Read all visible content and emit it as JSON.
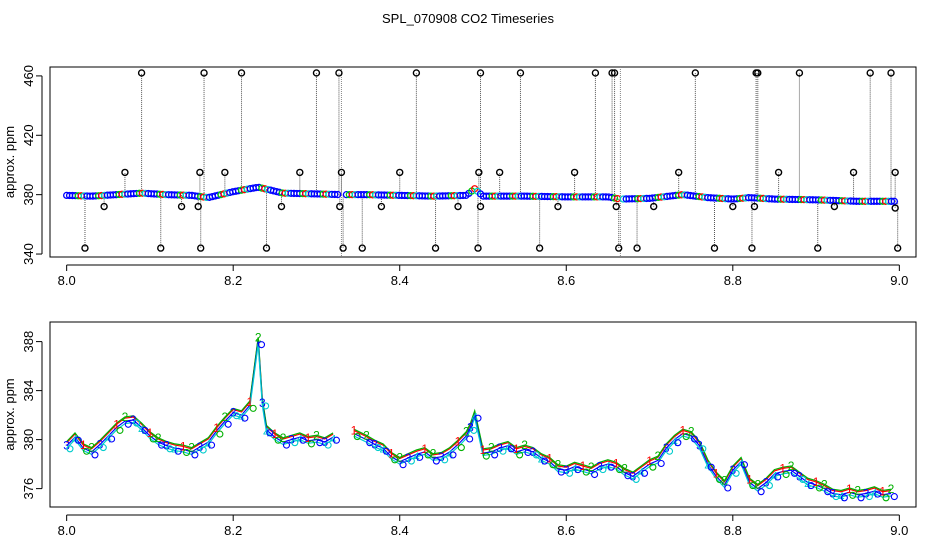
{
  "title": "SPL_070908  CO2 Timeseries",
  "chart_data": [
    {
      "type": "scatter",
      "ylabel": "approx. ppm",
      "xlabel": "",
      "xlim": [
        7.98,
        9.02
      ],
      "ylim": [
        338,
        466
      ],
      "xticks": [
        8.0,
        8.2,
        8.4,
        8.6,
        8.8,
        9.0
      ],
      "yticks": [
        340,
        380,
        420,
        460
      ],
      "grid": false,
      "legend": "none",
      "gaps": [
        8.33,
        8.665
      ],
      "baseline": [
        [
          8.0,
          379.5
        ],
        [
          8.03,
          379
        ],
        [
          8.06,
          380
        ],
        [
          8.09,
          381
        ],
        [
          8.12,
          380
        ],
        [
          8.15,
          379.5
        ],
        [
          8.17,
          378
        ],
        [
          8.2,
          382
        ],
        [
          8.23,
          385
        ],
        [
          8.26,
          381
        ],
        [
          8.3,
          380.5
        ],
        [
          8.33,
          380
        ],
        [
          8.36,
          380
        ],
        [
          8.4,
          379.5
        ],
        [
          8.44,
          379
        ],
        [
          8.48,
          379.5
        ],
        [
          8.49,
          384
        ],
        [
          8.5,
          379
        ],
        [
          8.55,
          379
        ],
        [
          8.6,
          378.5
        ],
        [
          8.65,
          378.5
        ],
        [
          8.665,
          377
        ],
        [
          8.7,
          377.5
        ],
        [
          8.74,
          380
        ],
        [
          8.77,
          378
        ],
        [
          8.8,
          377
        ],
        [
          8.82,
          378
        ],
        [
          8.85,
          377
        ],
        [
          8.9,
          376.5
        ],
        [
          8.95,
          375.5
        ],
        [
          8.995,
          375.5
        ]
      ],
      "spikes_up": [
        8.07,
        8.09,
        8.16,
        8.165,
        8.19,
        8.21,
        8.28,
        8.3,
        8.327,
        8.33,
        8.4,
        8.42,
        8.495,
        8.497,
        8.52,
        8.545,
        8.61,
        8.635,
        8.655,
        8.658,
        8.735,
        8.755,
        8.828,
        8.83,
        8.855,
        8.88,
        8.945,
        8.965,
        8.99,
        8.995
      ],
      "spike_up_values": [
        395,
        462,
        395,
        462,
        395,
        462,
        395,
        462,
        462,
        395,
        395,
        462,
        395,
        462,
        395,
        462,
        395,
        462,
        462,
        462,
        395,
        462,
        462,
        462,
        395,
        462,
        395,
        462,
        462,
        395
      ],
      "spikes_down": [
        8.022,
        8.045,
        8.113,
        8.138,
        8.158,
        8.161,
        8.24,
        8.258,
        8.328,
        8.332,
        8.355,
        8.378,
        8.443,
        8.47,
        8.494,
        8.497,
        8.568,
        8.59,
        8.66,
        8.663,
        8.685,
        8.705,
        8.778,
        8.8,
        8.823,
        8.826,
        8.902,
        8.922,
        8.995,
        8.998
      ],
      "spike_down_values": [
        344,
        372,
        344,
        372,
        372,
        344,
        344,
        372,
        372,
        344,
        344,
        372,
        344,
        372,
        344,
        372,
        344,
        372,
        372,
        344,
        344,
        372,
        344,
        372,
        344,
        372,
        344,
        372,
        371,
        344
      ]
    },
    {
      "type": "line",
      "ylabel": "approx. ppm",
      "xlabel": "",
      "xlim": [
        7.98,
        9.02
      ],
      "ylim": [
        374.5,
        389.6
      ],
      "xticks": [
        8.0,
        8.2,
        8.4,
        8.6,
        8.8,
        9.0
      ],
      "yticks": [
        376,
        380,
        384,
        388
      ],
      "grid": false,
      "legend": "none",
      "series": [
        {
          "name": "1",
          "color": "#ff0000"
        },
        {
          "name": "2",
          "color": "#00b000"
        },
        {
          "name": "3",
          "color": "#0000ff"
        },
        {
          "name": "4",
          "color": "#00cccc"
        }
      ],
      "gaps": [
        8.325
      ],
      "points": [
        [
          8.0,
          379.5
        ],
        [
          8.01,
          380.2
        ],
        [
          8.02,
          379.3
        ],
        [
          8.03,
          379.0
        ],
        [
          8.04,
          379.6
        ],
        [
          8.05,
          380.3
        ],
        [
          8.06,
          381.0
        ],
        [
          8.07,
          381.5
        ],
        [
          8.08,
          381.6
        ],
        [
          8.09,
          381.0
        ],
        [
          8.1,
          380.3
        ],
        [
          8.11,
          379.8
        ],
        [
          8.12,
          379.5
        ],
        [
          8.13,
          379.3
        ],
        [
          8.14,
          379.2
        ],
        [
          8.15,
          379.0
        ],
        [
          8.16,
          379.4
        ],
        [
          8.17,
          379.8
        ],
        [
          8.18,
          380.7
        ],
        [
          8.19,
          381.5
        ],
        [
          8.2,
          382.2
        ],
        [
          8.21,
          382.0
        ],
        [
          8.22,
          382.8
        ],
        [
          8.23,
          388.0
        ],
        [
          8.235,
          383.0
        ],
        [
          8.24,
          380.8
        ],
        [
          8.25,
          380.2
        ],
        [
          8.26,
          379.8
        ],
        [
          8.27,
          380.0
        ],
        [
          8.28,
          380.2
        ],
        [
          8.29,
          379.9
        ],
        [
          8.3,
          380.0
        ],
        [
          8.31,
          379.8
        ],
        [
          8.32,
          380.2
        ],
        [
          8.345,
          380.5
        ],
        [
          8.36,
          380.0
        ],
        [
          8.37,
          379.6
        ],
        [
          8.38,
          379.3
        ],
        [
          8.39,
          378.6
        ],
        [
          8.4,
          378.2
        ],
        [
          8.41,
          378.5
        ],
        [
          8.42,
          378.8
        ],
        [
          8.43,
          379.0
        ],
        [
          8.44,
          378.5
        ],
        [
          8.45,
          378.6
        ],
        [
          8.46,
          379.0
        ],
        [
          8.47,
          379.6
        ],
        [
          8.48,
          380.3
        ],
        [
          8.485,
          381.0
        ],
        [
          8.49,
          382.0
        ],
        [
          8.5,
          378.9
        ],
        [
          8.51,
          379.0
        ],
        [
          8.52,
          379.3
        ],
        [
          8.53,
          379.5
        ],
        [
          8.54,
          379.0
        ],
        [
          8.55,
          379.2
        ],
        [
          8.56,
          379.0
        ],
        [
          8.57,
          378.5
        ],
        [
          8.58,
          378.2
        ],
        [
          8.59,
          377.6
        ],
        [
          8.6,
          377.5
        ],
        [
          8.61,
          377.8
        ],
        [
          8.62,
          377.6
        ],
        [
          8.63,
          377.4
        ],
        [
          8.64,
          377.8
        ],
        [
          8.65,
          378.0
        ],
        [
          8.66,
          377.8
        ],
        [
          8.67,
          377.3
        ],
        [
          8.68,
          377.0
        ],
        [
          8.69,
          377.5
        ],
        [
          8.7,
          378.0
        ],
        [
          8.71,
          378.3
        ],
        [
          8.72,
          379.3
        ],
        [
          8.73,
          380.0
        ],
        [
          8.74,
          380.5
        ],
        [
          8.75,
          380.3
        ],
        [
          8.76,
          379.5
        ],
        [
          8.77,
          378.0
        ],
        [
          8.78,
          377.0
        ],
        [
          8.79,
          376.3
        ],
        [
          8.8,
          377.5
        ],
        [
          8.81,
          378.2
        ],
        [
          8.82,
          376.5
        ],
        [
          8.83,
          376.0
        ],
        [
          8.84,
          376.5
        ],
        [
          8.85,
          377.2
        ],
        [
          8.86,
          377.4
        ],
        [
          8.87,
          377.5
        ],
        [
          8.88,
          377.0
        ],
        [
          8.89,
          376.5
        ],
        [
          8.9,
          376.3
        ],
        [
          8.91,
          376.0
        ],
        [
          8.92,
          375.6
        ],
        [
          8.93,
          375.5
        ],
        [
          8.94,
          375.7
        ],
        [
          8.95,
          375.5
        ],
        [
          8.96,
          375.6
        ],
        [
          8.97,
          375.8
        ],
        [
          8.98,
          375.5
        ],
        [
          8.99,
          375.6
        ]
      ]
    }
  ]
}
